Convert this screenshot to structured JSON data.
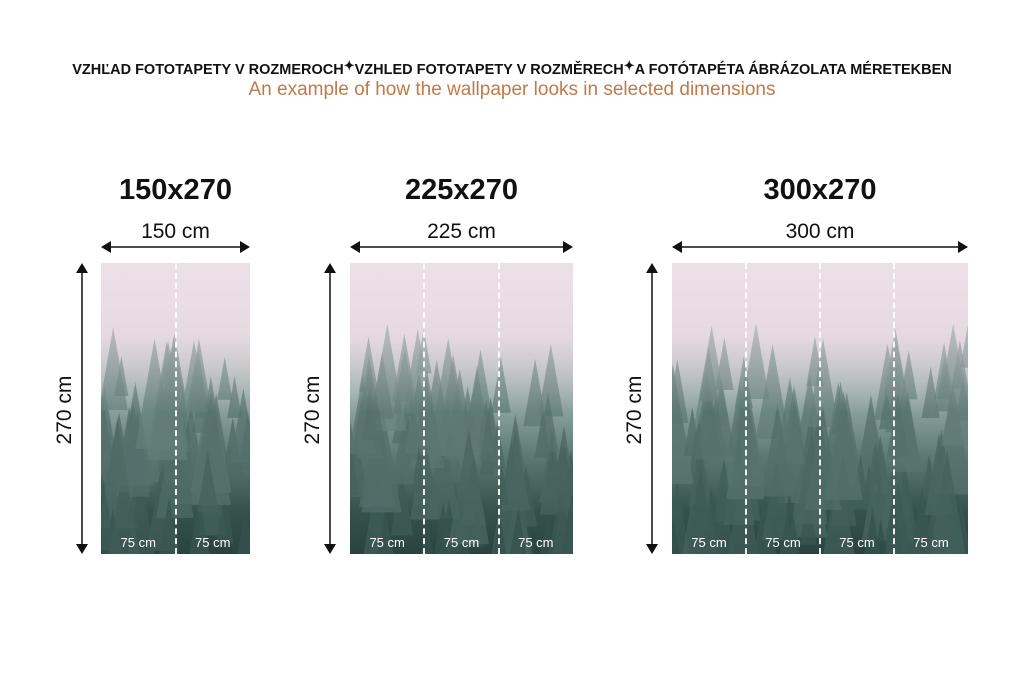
{
  "header": {
    "sk": "VZHĽAD FOTOTAPETY V ROZMEROCH",
    "cz": "VZHLED FOTOTAPETY V ROZMĚRECH",
    "hu": "A FOTÓTAPÉTA ÁBRÁZOLATA MÉRETEKBEN",
    "separator": "✦",
    "subtitle": "An example of how the wallpaper looks in selected dimensions"
  },
  "variants": [
    {
      "title": "150x270",
      "width_label": "150 cm",
      "height_label": "270 cm",
      "panels": [
        "75 cm",
        "75 cm"
      ]
    },
    {
      "title": "225x270",
      "width_label": "225 cm",
      "height_label": "270 cm",
      "panels": [
        "75 cm",
        "75 cm",
        "75 cm"
      ]
    },
    {
      "title": "300x270",
      "width_label": "300 cm",
      "height_label": "270 cm",
      "panels": [
        "75 cm",
        "75 cm",
        "75 cm",
        "75 cm"
      ]
    }
  ]
}
